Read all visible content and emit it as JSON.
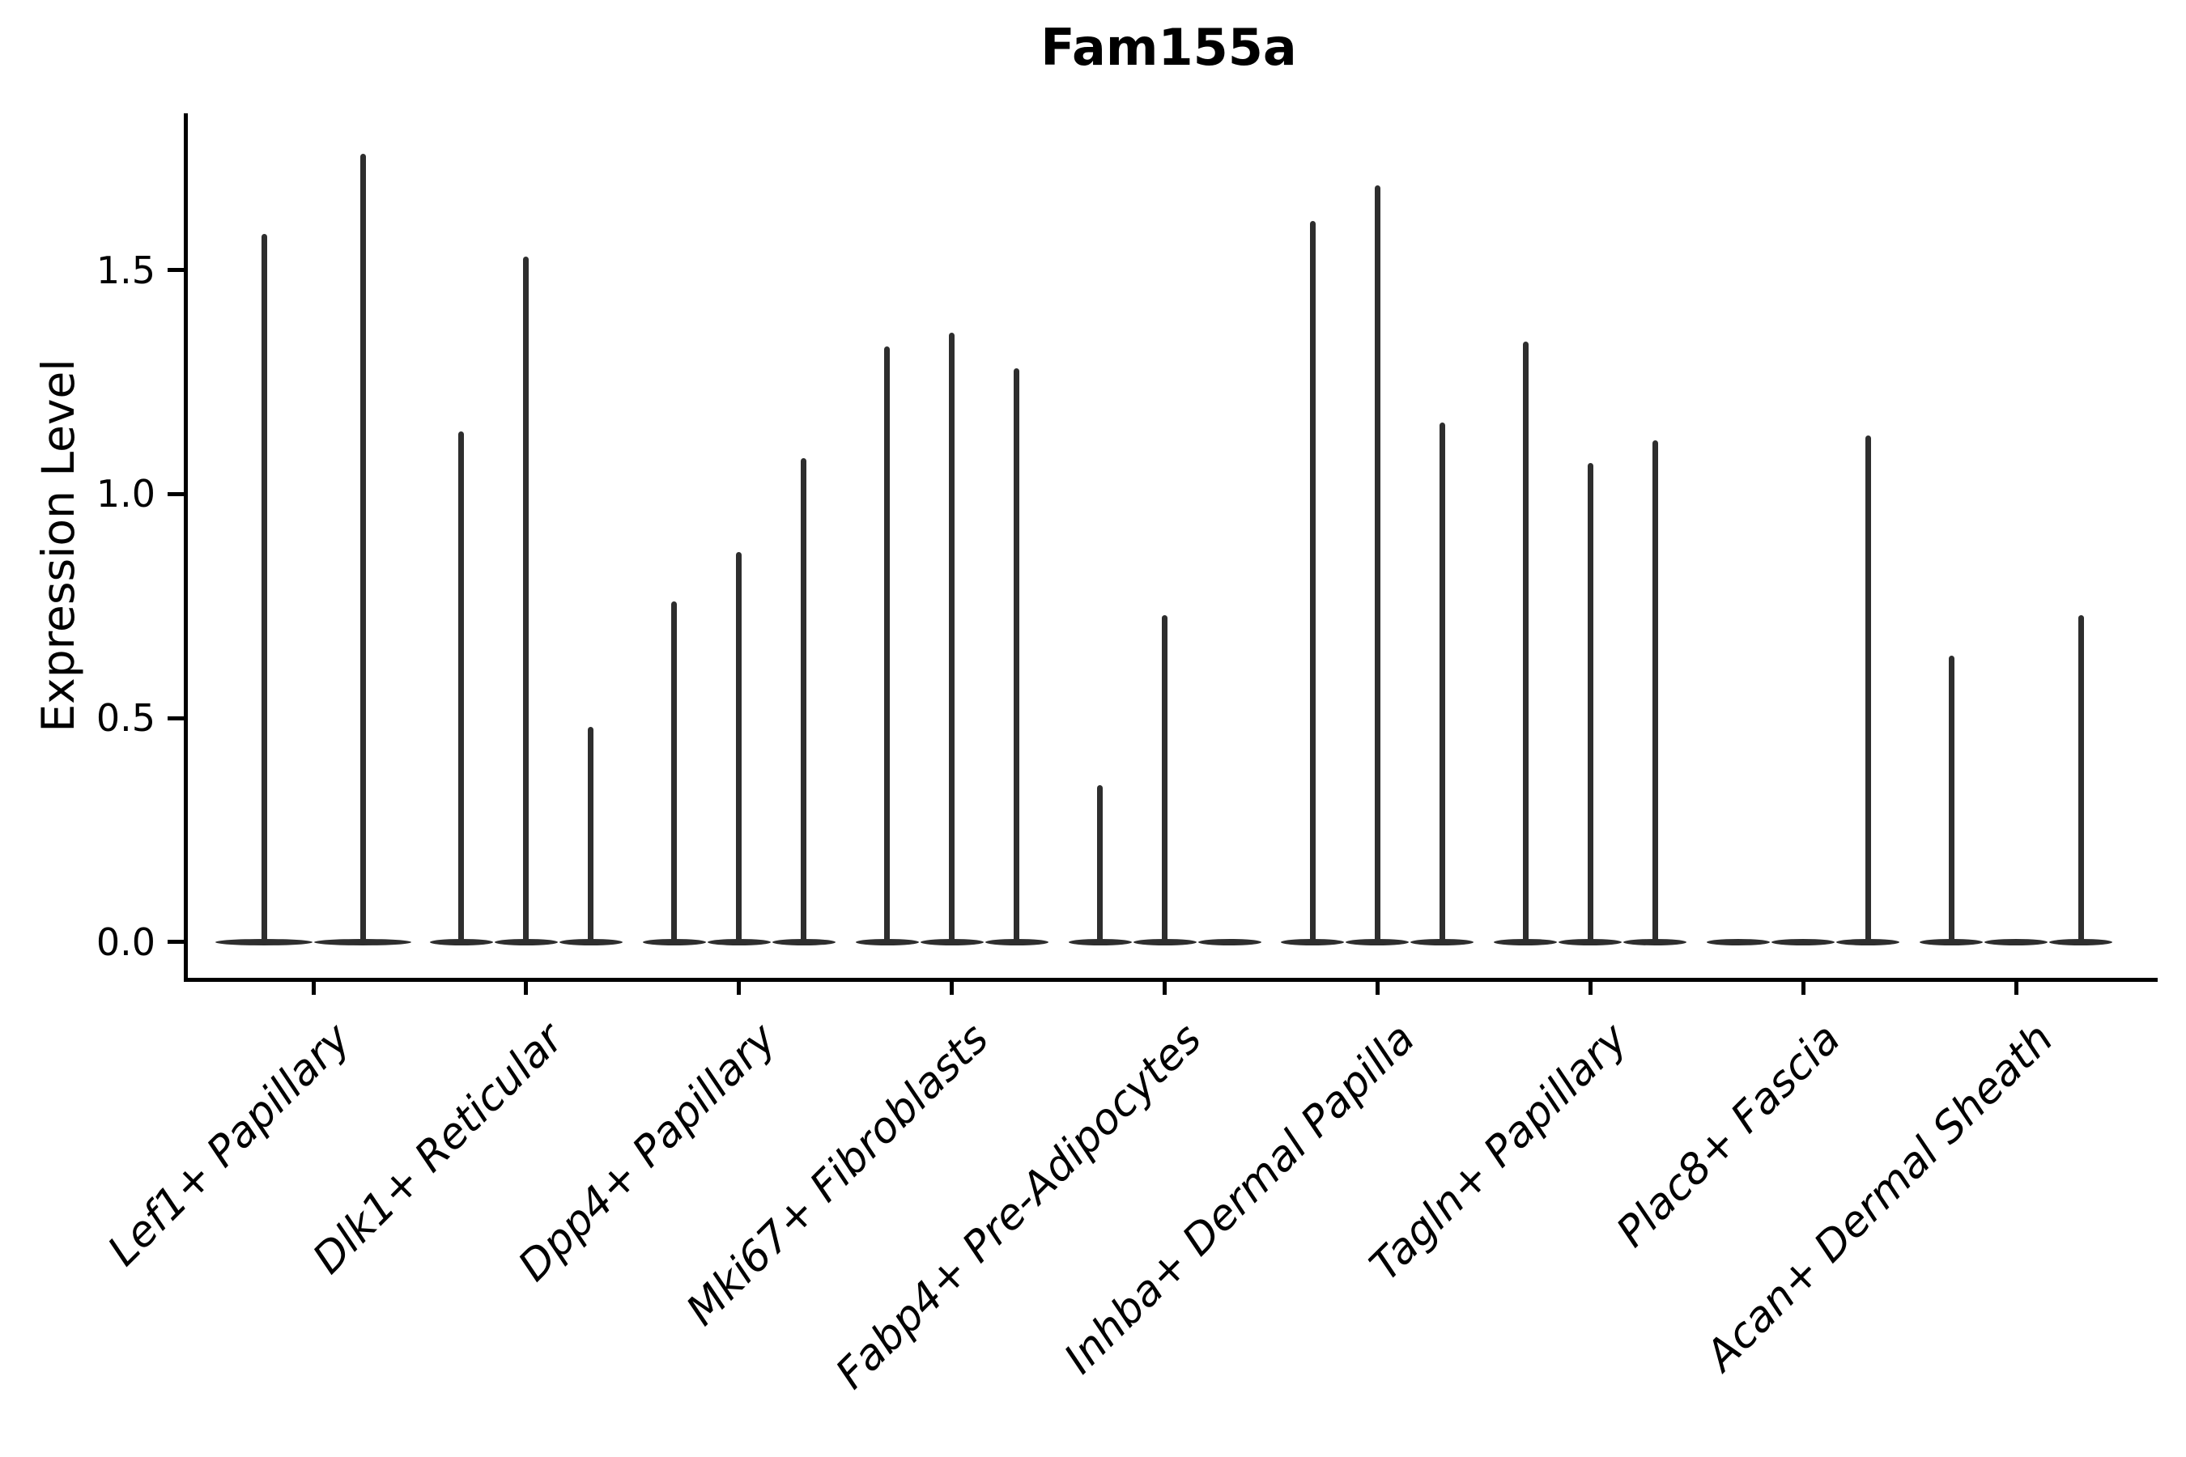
{
  "chart_data": {
    "type": "violin",
    "title": "Fam155a",
    "ylabel": "Expression Level",
    "xlabel": "",
    "yticks": [
      0.0,
      0.5,
      1.0,
      1.5
    ],
    "ylim": [
      -0.08,
      1.85
    ],
    "grid": false,
    "legend": "none",
    "categories": [
      "Lef1+ Papillary",
      "Dlk1+ Reticular",
      "Dpp4+ Papillary",
      "Mki67+ Fibroblasts",
      "Fabp4+ Pre-Adipocytes",
      "Inhba+ Dermal Papilla",
      "Tagln+ Papillary",
      "Plac8+ Fascia",
      "Acan+ Dermal Sheath"
    ],
    "groups": [
      {
        "category": "Lef1+ Papillary",
        "violin_maxima": [
          1.58,
          1.76
        ]
      },
      {
        "category": "Dlk1+ Reticular",
        "violin_maxima": [
          1.14,
          1.53,
          0.48
        ]
      },
      {
        "category": "Dpp4+ Papillary",
        "violin_maxima": [
          0.76,
          0.87,
          1.08
        ]
      },
      {
        "category": "Mki67+ Fibroblasts",
        "violin_maxima": [
          1.33,
          1.36,
          1.28
        ]
      },
      {
        "category": "Fabp4+ Pre-Adipocytes",
        "violin_maxima": [
          0.35,
          0.73,
          0
        ]
      },
      {
        "category": "Inhba+ Dermal Papilla",
        "violin_maxima": [
          1.61,
          1.69,
          1.16
        ]
      },
      {
        "category": "Tagln+ Papillary",
        "violin_maxima": [
          1.34,
          1.07,
          1.12
        ]
      },
      {
        "category": "Plac8+ Fascia",
        "violin_maxima": [
          0,
          0,
          1.13
        ]
      },
      {
        "category": "Acan+ Dermal Sheath",
        "violin_maxima": [
          0.64,
          0,
          0.73
        ]
      }
    ],
    "colors": {
      "violin": "#2e2e2e",
      "axis": "#000000",
      "text": "#000000",
      "background": "#ffffff"
    }
  }
}
